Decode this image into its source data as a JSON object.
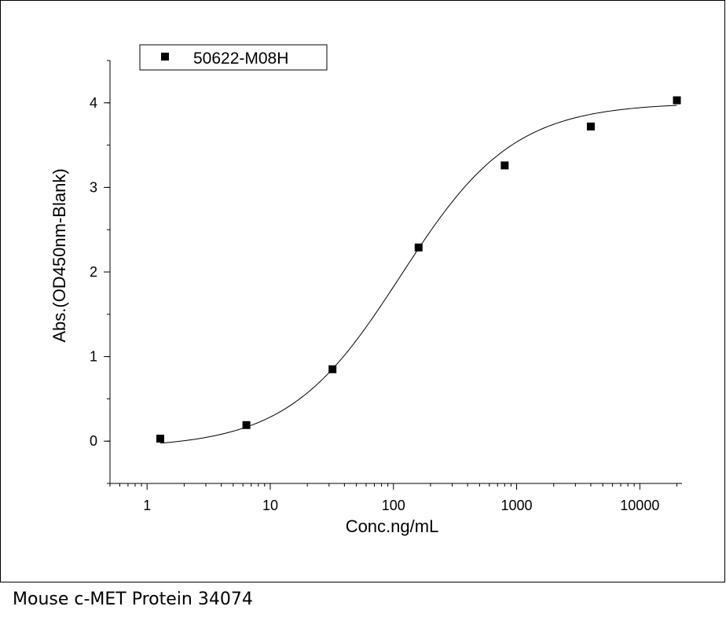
{
  "caption": "Mouse c-MET Protein 34074",
  "chart_data": {
    "type": "scatter",
    "xscale": "log",
    "xlim": [
      0.5,
      22000
    ],
    "ylim": [
      -0.5,
      4.5
    ],
    "xticks": [
      1,
      10,
      100,
      1000,
      10000
    ],
    "xtick_labels": [
      "1",
      "10",
      "100",
      "1000",
      "10000"
    ],
    "yticks": [
      0,
      1,
      2,
      3,
      4
    ],
    "ytick_labels": [
      "0",
      "1",
      "2",
      "3",
      "4"
    ],
    "xlabel": "Conc.ng/mL",
    "ylabel": "Abs.(OD450nm-Blank)",
    "legend_position": "top-left",
    "grid": false,
    "series": [
      {
        "name": "50622-M08H",
        "marker": "square",
        "color": "#000000",
        "points": [
          {
            "x": 1.28,
            "y": 0.03
          },
          {
            "x": 6.4,
            "y": 0.19
          },
          {
            "x": 32,
            "y": 0.85
          },
          {
            "x": 160,
            "y": 2.29
          },
          {
            "x": 800,
            "y": 3.26
          },
          {
            "x": 4000,
            "y": 3.72
          },
          {
            "x": 20000,
            "y": 4.03
          }
        ],
        "fit": {
          "type": "4PL",
          "bottom": -0.08,
          "top": 4.0,
          "ec50": 115,
          "hill": 0.95
        }
      }
    ]
  }
}
